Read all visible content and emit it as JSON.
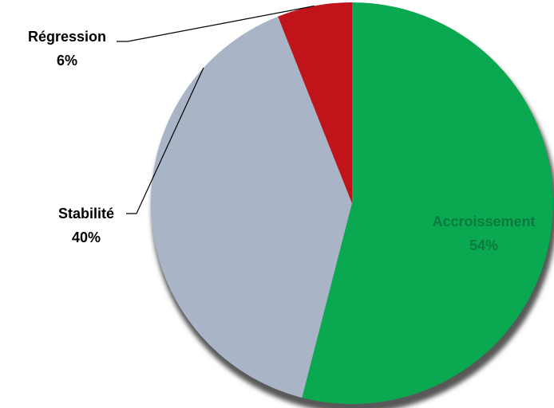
{
  "chart_data": {
    "type": "pie",
    "title": "",
    "slices": [
      {
        "name": "Accroissement",
        "value": 54,
        "value_label": "54%",
        "color": "#0AA850",
        "label_color": "#0C7A3E"
      },
      {
        "name": "Stabilité",
        "value": 40,
        "value_label": "40%",
        "color": "#A9B4C6",
        "label_color": "#000000"
      },
      {
        "name": "Régression",
        "value": 6,
        "value_label": "6%",
        "color": "#C0141A",
        "label_color": "#000000"
      }
    ],
    "start_angle_deg": 0,
    "direction": "clockwise",
    "shadow_color": "#595959"
  }
}
